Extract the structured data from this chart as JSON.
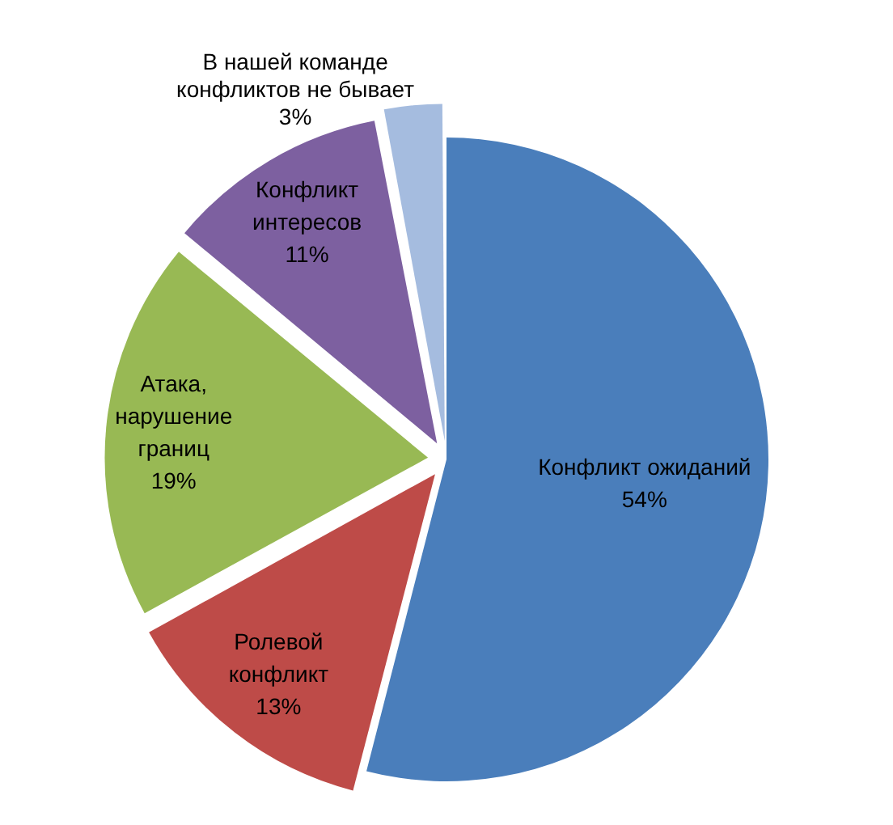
{
  "chart_data": {
    "type": "pie",
    "categories": [
      "Конфликт ожиданий",
      "Ролевой конфликт",
      "Атака, нарушение границ",
      "Конфликт интересов",
      "В нашей команде конфликтов не бывает"
    ],
    "values": [
      54,
      13,
      19,
      11,
      3
    ],
    "colors": [
      "#4a7ebb",
      "#be4b48",
      "#98b954",
      "#7d60a0",
      "#a5bcdf"
    ],
    "value_labels": [
      "54%",
      "13%",
      "19%",
      "11%",
      "3%"
    ],
    "legend": false
  }
}
